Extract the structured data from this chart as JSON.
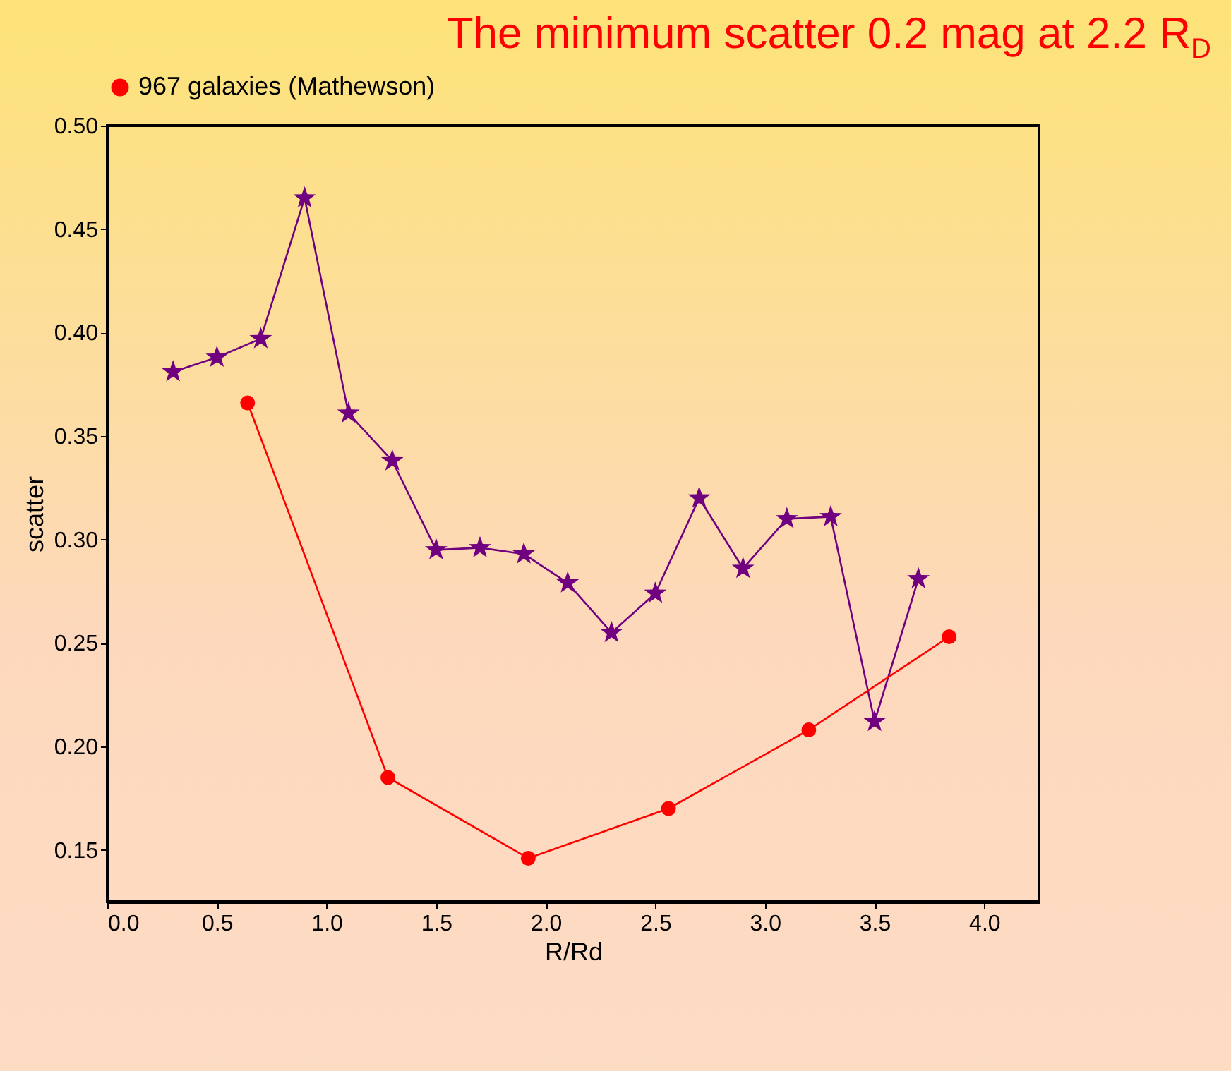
{
  "chart_data": {
    "type": "line",
    "title": "The minimum scatter 0.2 mag at 2.2 R$_{D}$",
    "xlabel": "R/Rd",
    "ylabel": "scatter",
    "xlim": [
      0,
      4.25
    ],
    "xticks": [
      {
        "value": 0,
        "label": "0.0"
      },
      {
        "value": 0.5,
        "label": "0.5"
      },
      {
        "value": 1,
        "label": "1.0"
      },
      {
        "value": 1.5,
        "label": "1.5"
      },
      {
        "value": 2,
        "label": "2.0"
      },
      {
        "value": 2.5,
        "label": "2.5"
      },
      {
        "value": 3,
        "label": "3.0"
      },
      {
        "value": 3.5,
        "label": "3.5"
      },
      {
        "value": 4,
        "label": "4.0"
      }
    ],
    "ylim": [
      0.125,
      0.5
    ],
    "yticks": [
      {
        "value": 0.15,
        "label": "0.15"
      },
      {
        "value": 0.2,
        "label": "0.20"
      },
      {
        "value": 0.25,
        "label": "0.25"
      },
      {
        "value": 0.3,
        "label": "0.30"
      },
      {
        "value": 0.35,
        "label": "0.35"
      },
      {
        "value": 0.4,
        "label": "0.40"
      },
      {
        "value": 0.45,
        "label": "0.45"
      },
      {
        "value": 0.5,
        "label": "0.50"
      }
    ],
    "grid": false,
    "legend": "top",
    "series": [
      {
        "color": "#700080",
        "marker": "star",
        "x": [
          0.3,
          0.5,
          0.7,
          0.9,
          1.1,
          1.3,
          1.5,
          1.7,
          1.9,
          2.1,
          2.3,
          2.5,
          2.7,
          2.9,
          3.1,
          3.3,
          3.5,
          3.7
        ],
        "values": [
          0.381,
          0.388,
          0.397,
          0.465,
          0.361,
          0.338,
          0.295,
          0.296,
          0.293,
          0.279,
          0.255,
          0.274,
          0.32,
          0.286,
          0.31,
          0.311,
          0.212,
          0.281
        ]
      },
      {
        "name": "967 galaxies (Mathewson)",
        "color": "#ff0000",
        "marker": "circle",
        "x": [
          0.64,
          1.28,
          1.92,
          2.56,
          3.2,
          3.84
        ],
        "values": [
          0.366,
          0.185,
          0.146,
          0.17,
          0.208,
          0.253
        ]
      }
    ]
  }
}
